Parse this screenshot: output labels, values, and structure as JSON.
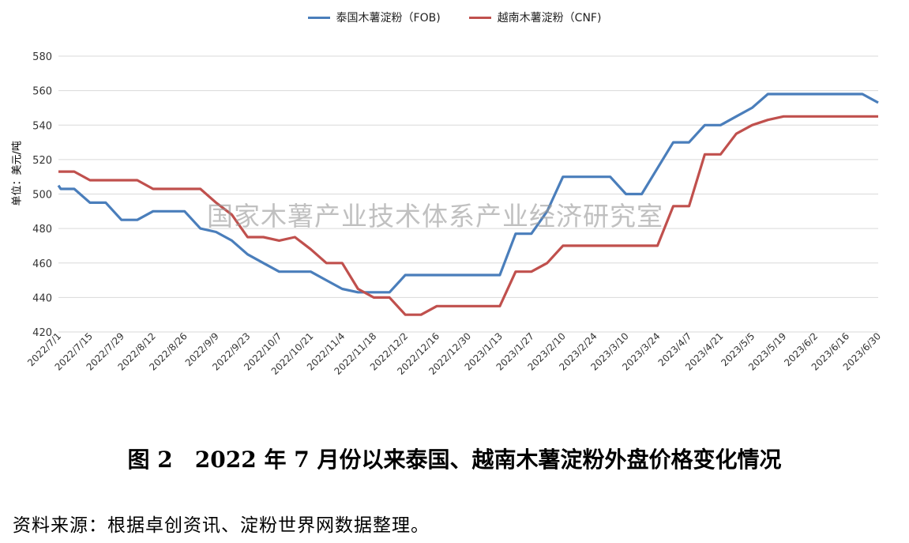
{
  "chart_data": {
    "type": "line",
    "ylabel": "单位：美元/吨",
    "ylim": [
      420,
      580
    ],
    "yticks": [
      420,
      440,
      460,
      480,
      500,
      520,
      540,
      560,
      580
    ],
    "grid": true,
    "legend_position": "top-center",
    "x_tick_labels": [
      "2022/7/1",
      "2022/7/15",
      "2022/7/29",
      "2022/8/12",
      "2022/8/26",
      "2022/9/9",
      "2022/9/23",
      "2022/10/7",
      "2022/10/21",
      "2022/11/4",
      "2022/11/18",
      "2022/12/2",
      "2022/12/16",
      "2022/12/30",
      "2023/1/13",
      "2023/1/27",
      "2023/2/10",
      "2023/2/24",
      "2023/3/10",
      "2023/3/24",
      "2023/4/7",
      "2023/4/21",
      "2023/5/5",
      "2023/5/19",
      "2023/6/2",
      "2023/6/16",
      "2023/6/30"
    ],
    "series": [
      {
        "name": "泰国木薯淀粉（FOB)",
        "color": "#4a7ebb",
        "points": [
          [
            "2022/7/1",
            505
          ],
          [
            "2022/7/2",
            503
          ],
          [
            "2022/7/8",
            503
          ],
          [
            "2022/7/15",
            495
          ],
          [
            "2022/7/22",
            495
          ],
          [
            "2022/7/29",
            485
          ],
          [
            "2022/8/5",
            485
          ],
          [
            "2022/8/12",
            490
          ],
          [
            "2022/8/19",
            490
          ],
          [
            "2022/8/26",
            490
          ],
          [
            "2022/9/2",
            480
          ],
          [
            "2022/9/9",
            478
          ],
          [
            "2022/9/16",
            473
          ],
          [
            "2022/9/23",
            465
          ],
          [
            "2022/9/30",
            460
          ],
          [
            "2022/10/7",
            455
          ],
          [
            "2022/10/14",
            455
          ],
          [
            "2022/10/21",
            455
          ],
          [
            "2022/10/28",
            450
          ],
          [
            "2022/11/4",
            445
          ],
          [
            "2022/11/11",
            443
          ],
          [
            "2022/11/18",
            443
          ],
          [
            "2022/11/25",
            443
          ],
          [
            "2022/12/2",
            453
          ],
          [
            "2022/12/9",
            453
          ],
          [
            "2022/12/16",
            453
          ],
          [
            "2022/12/23",
            453
          ],
          [
            "2022/12/30",
            453
          ],
          [
            "2023/1/6",
            453
          ],
          [
            "2023/1/13",
            453
          ],
          [
            "2023/1/20",
            477
          ],
          [
            "2023/1/27",
            477
          ],
          [
            "2023/2/3",
            490
          ],
          [
            "2023/2/10",
            510
          ],
          [
            "2023/2/17",
            510
          ],
          [
            "2023/2/24",
            510
          ],
          [
            "2023/3/3",
            510
          ],
          [
            "2023/3/10",
            500
          ],
          [
            "2023/3/17",
            500
          ],
          [
            "2023/3/24",
            515
          ],
          [
            "2023/3/31",
            530
          ],
          [
            "2023/4/7",
            530
          ],
          [
            "2023/4/14",
            540
          ],
          [
            "2023/4/21",
            540
          ],
          [
            "2023/4/28",
            545
          ],
          [
            "2023/5/5",
            550
          ],
          [
            "2023/5/12",
            558
          ],
          [
            "2023/5/19",
            558
          ],
          [
            "2023/5/26",
            558
          ],
          [
            "2023/6/2",
            558
          ],
          [
            "2023/6/9",
            558
          ],
          [
            "2023/6/16",
            558
          ],
          [
            "2023/6/23",
            558
          ],
          [
            "2023/6/30",
            553
          ]
        ]
      },
      {
        "name": "越南木薯淀粉（CNF)",
        "color": "#c0504d",
        "points": [
          [
            "2022/7/1",
            513
          ],
          [
            "2022/7/8",
            513
          ],
          [
            "2022/7/15",
            508
          ],
          [
            "2022/7/22",
            508
          ],
          [
            "2022/7/29",
            508
          ],
          [
            "2022/8/5",
            508
          ],
          [
            "2022/8/12",
            503
          ],
          [
            "2022/8/19",
            503
          ],
          [
            "2022/8/26",
            503
          ],
          [
            "2022/9/2",
            503
          ],
          [
            "2022/9/9",
            495
          ],
          [
            "2022/9/16",
            488
          ],
          [
            "2022/9/23",
            475
          ],
          [
            "2022/9/30",
            475
          ],
          [
            "2022/10/7",
            473
          ],
          [
            "2022/10/14",
            475
          ],
          [
            "2022/10/21",
            468
          ],
          [
            "2022/10/28",
            460
          ],
          [
            "2022/11/4",
            460
          ],
          [
            "2022/11/11",
            445
          ],
          [
            "2022/11/18",
            440
          ],
          [
            "2022/11/25",
            440
          ],
          [
            "2022/12/2",
            430
          ],
          [
            "2022/12/9",
            430
          ],
          [
            "2022/12/16",
            435
          ],
          [
            "2022/12/23",
            435
          ],
          [
            "2022/12/30",
            435
          ],
          [
            "2023/1/6",
            435
          ],
          [
            "2023/1/13",
            435
          ],
          [
            "2023/1/20",
            455
          ],
          [
            "2023/1/27",
            455
          ],
          [
            "2023/2/3",
            460
          ],
          [
            "2023/2/10",
            470
          ],
          [
            "2023/2/17",
            470
          ],
          [
            "2023/2/24",
            470
          ],
          [
            "2023/3/3",
            470
          ],
          [
            "2023/3/10",
            470
          ],
          [
            "2023/3/17",
            470
          ],
          [
            "2023/3/24",
            470
          ],
          [
            "2023/3/31",
            493
          ],
          [
            "2023/4/7",
            493
          ],
          [
            "2023/4/14",
            523
          ],
          [
            "2023/4/21",
            523
          ],
          [
            "2023/4/28",
            535
          ],
          [
            "2023/5/5",
            540
          ],
          [
            "2023/5/12",
            543
          ],
          [
            "2023/5/19",
            545
          ],
          [
            "2023/5/26",
            545
          ],
          [
            "2023/6/2",
            545
          ],
          [
            "2023/6/9",
            545
          ],
          [
            "2023/6/16",
            545
          ],
          [
            "2023/6/23",
            545
          ],
          [
            "2023/6/30",
            545
          ]
        ]
      }
    ]
  },
  "watermark": "国家木薯产业技术体系产业经济研究室",
  "caption": {
    "label": "图 2",
    "text": "2022 年 7 月份以来泰国、越南木薯淀粉外盘价格变化情况"
  },
  "source": "资料来源：根据卓创资讯、淀粉世界网数据整理。"
}
